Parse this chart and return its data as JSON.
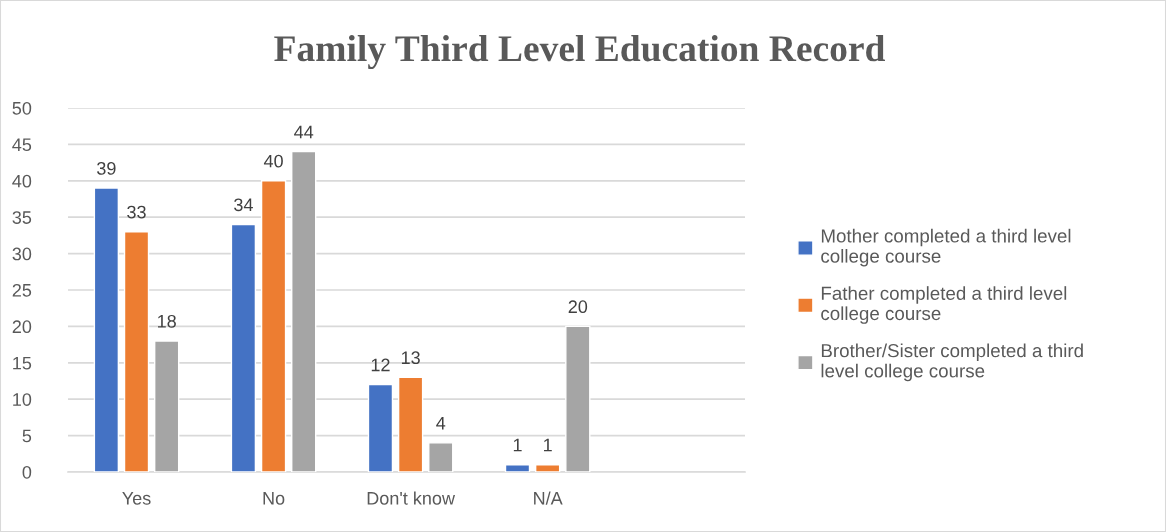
{
  "chart_data": {
    "type": "bar",
    "title": "Family Third Level Education Record",
    "categories": [
      "Yes",
      "No",
      "Don't know",
      "N/A"
    ],
    "series": [
      {
        "name": "Mother completed a third level college course",
        "color": "#4472c4",
        "values": [
          39,
          34,
          12,
          1
        ]
      },
      {
        "name": "Father completed a third level college course",
        "color": "#ed7d31",
        "values": [
          33,
          40,
          13,
          1
        ]
      },
      {
        "name": "Brother/Sister completed a third level college course",
        "color": "#a5a5a5",
        "values": [
          18,
          44,
          4,
          20
        ]
      }
    ],
    "ylim": [
      0,
      50
    ],
    "yticks": [
      0,
      5,
      10,
      15,
      20,
      25,
      30,
      35,
      40,
      45,
      50
    ],
    "grid": "y",
    "legend": "right",
    "data_labels": true
  }
}
